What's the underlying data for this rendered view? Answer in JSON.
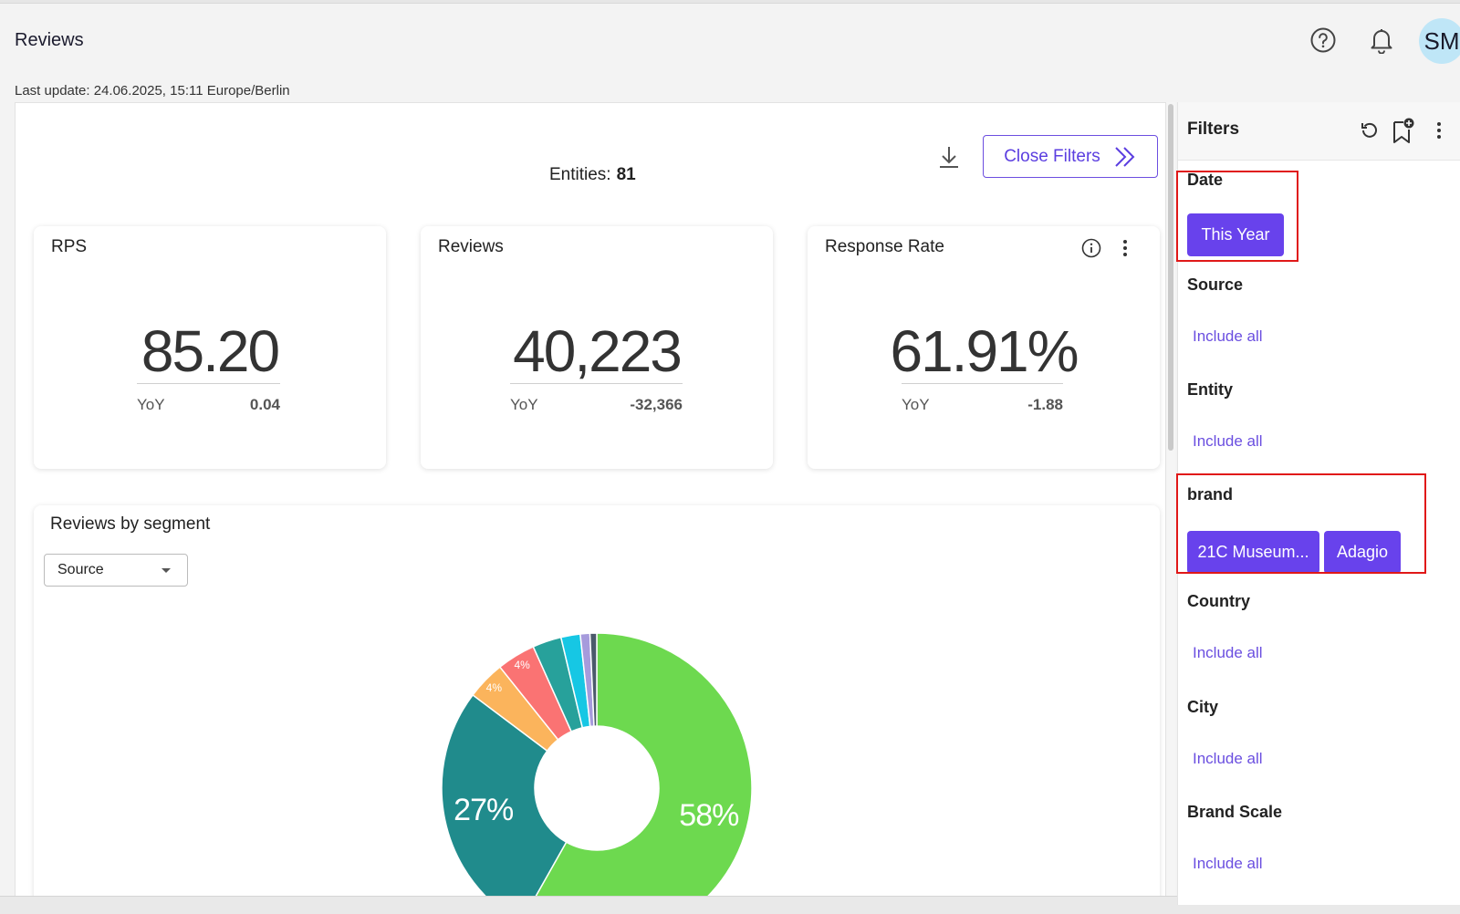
{
  "header": {
    "title": "Reviews",
    "avatar_initials": "SM",
    "last_update": "Last update: 24.06.2025, 15:11 Europe/Berlin"
  },
  "toolbar": {
    "entities_label": "Entities:",
    "entities_count": "81",
    "close_filters_label": "Close Filters"
  },
  "kpis": [
    {
      "title": "RPS",
      "value": "85.20",
      "yoy_label": "YoY",
      "delta": "0.04"
    },
    {
      "title": "Reviews",
      "value": "40,223",
      "yoy_label": "YoY",
      "delta": "-32,366"
    },
    {
      "title": "Response Rate",
      "value": "61.91%",
      "yoy_label": "YoY",
      "delta": "-1.88"
    }
  ],
  "segment": {
    "title": "Reviews by segment",
    "selected": "Source"
  },
  "chart_data": {
    "type": "pie",
    "donut": true,
    "slices": [
      {
        "percent": 58,
        "label": "58%",
        "color": "#6dd94f"
      },
      {
        "percent": 27,
        "label": "27%",
        "color": "#208b8c"
      },
      {
        "percent": 4,
        "label": "4%",
        "color": "#fbb45c"
      },
      {
        "percent": 4,
        "label": "4%",
        "color": "#fa7373"
      },
      {
        "percent": 3,
        "label": "",
        "color": "#27a19b"
      },
      {
        "percent": 2,
        "label": "",
        "color": "#16c7e4"
      },
      {
        "percent": 1,
        "label": "",
        "color": "#a69bdc"
      },
      {
        "percent": 0.7,
        "label": "",
        "color": "#4b5a6b"
      }
    ]
  },
  "filters": {
    "title": "Filters",
    "groups": [
      {
        "label": "Date",
        "chips": [
          "This Year"
        ]
      },
      {
        "label": "Source",
        "link": "Include all"
      },
      {
        "label": "Entity",
        "link": "Include all"
      },
      {
        "label": "brand",
        "chips": [
          "21C Museum...",
          "Adagio"
        ]
      },
      {
        "label": "Country",
        "link": "Include all"
      },
      {
        "label": "City",
        "link": "Include all"
      },
      {
        "label": "Brand Scale",
        "link": "Include all"
      }
    ]
  },
  "colors": {
    "accent": "#6842ec",
    "highlight": "#e01818"
  }
}
